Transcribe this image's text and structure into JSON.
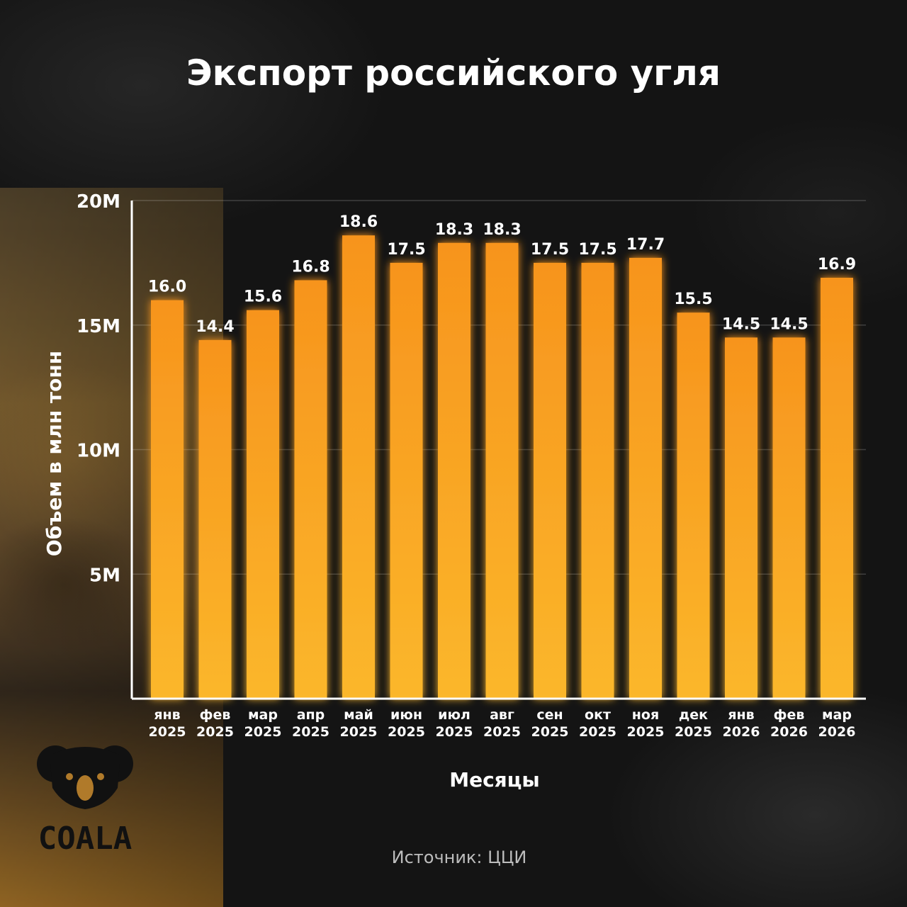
{
  "chart_data": {
    "type": "bar",
    "title": "Экспорт российского угля",
    "xlabel": "Месяцы",
    "ylabel": "Объем в млн тонн",
    "categories": [
      [
        "янв",
        "2025"
      ],
      [
        "фев",
        "2025"
      ],
      [
        "мар",
        "2025"
      ],
      [
        "апр",
        "2025"
      ],
      [
        "май",
        "2025"
      ],
      [
        "июн",
        "2025"
      ],
      [
        "июл",
        "2025"
      ],
      [
        "авг",
        "2025"
      ],
      [
        "сен",
        "2025"
      ],
      [
        "окт",
        "2025"
      ],
      [
        "ноя",
        "2025"
      ],
      [
        "дек",
        "2025"
      ],
      [
        "янв",
        "2026"
      ],
      [
        "фев",
        "2026"
      ],
      [
        "мар",
        "2026"
      ]
    ],
    "values": [
      16.0,
      14.4,
      15.6,
      16.8,
      18.6,
      17.5,
      18.3,
      18.3,
      17.5,
      17.5,
      17.7,
      15.5,
      14.5,
      14.5,
      16.9
    ],
    "value_labels": [
      "16.0",
      "14.4",
      "15.6",
      "16.8",
      "18.6",
      "17.5",
      "18.3",
      "18.3",
      "17.5",
      "17.5",
      "17.7",
      "15.5",
      "14.5",
      "14.5",
      "16.9"
    ],
    "ylim": [
      0,
      20
    ],
    "yticks": [
      {
        "value": 5,
        "label": "5M"
      },
      {
        "value": 10,
        "label": "10M"
      },
      {
        "value": 15,
        "label": "15M"
      },
      {
        "value": 20,
        "label": "20M"
      }
    ],
    "grid": true,
    "bar_color_top": "#f7941d",
    "bar_color_bottom": "#fbb72b"
  },
  "source": "Источник: ЦЦИ",
  "logo": {
    "text": "COALA",
    "icon": "koala-icon"
  }
}
